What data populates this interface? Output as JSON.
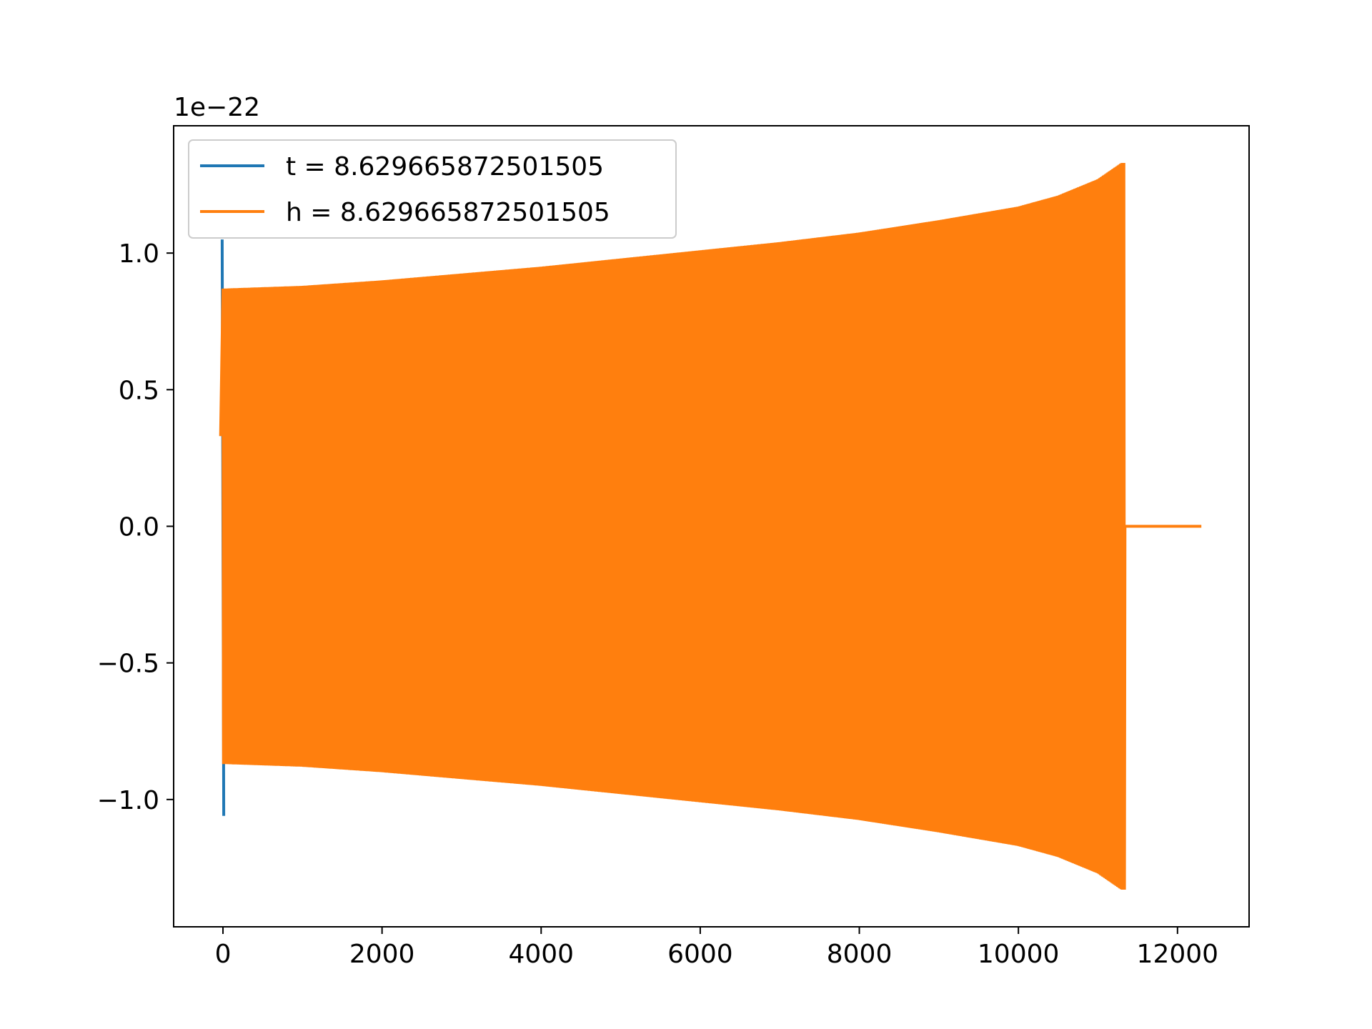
{
  "chart_data": {
    "type": "line",
    "title": "",
    "xlabel": "",
    "ylabel": "",
    "offset_text": "1e−22",
    "xlim": [
      -620,
      12900
    ],
    "ylim": [
      -1.466,
      1.466
    ],
    "x_ticks": [
      0,
      2000,
      4000,
      6000,
      8000,
      10000,
      12000
    ],
    "x_tick_labels": [
      "0",
      "2000",
      "4000",
      "6000",
      "8000",
      "10000",
      "12000"
    ],
    "y_ticks": [
      1.0,
      0.5,
      0.0,
      -0.5,
      -1.0
    ],
    "y_tick_labels": [
      "1.0",
      "0.5",
      "0.0",
      "−0.5",
      "−1.0"
    ],
    "grid": false,
    "legend_position": "upper-left",
    "series": [
      {
        "name": "t = 8.629665872501505",
        "color": "#1f77b4",
        "kind": "spike",
        "x": [
          -10,
          0,
          10
        ],
        "y": [
          1.05,
          0.0,
          -1.06
        ]
      },
      {
        "name": "h = 8.629665872501505",
        "color": "#ff7f0e",
        "kind": "chirp",
        "x_start": -30,
        "x_end_oscillation": 11340,
        "x_end": 12300,
        "envelope_x": [
          0,
          1000,
          2000,
          3000,
          4000,
          5000,
          6000,
          7000,
          8000,
          9000,
          10000,
          10500,
          11000,
          11300
        ],
        "envelope_y": [
          0.87,
          0.88,
          0.9,
          0.925,
          0.95,
          0.98,
          1.01,
          1.04,
          1.075,
          1.12,
          1.17,
          1.21,
          1.27,
          1.33
        ],
        "initial_value": 0.33
      }
    ]
  }
}
